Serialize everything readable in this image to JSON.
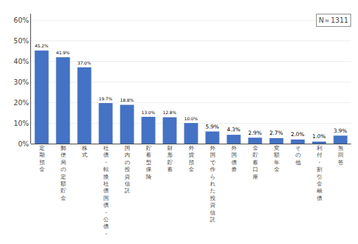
{
  "chart_data": {
    "type": "bar",
    "categories": [
      "定期預金",
      "郵便局の定額貯金",
      "株式",
      "社債・転換社債国債・公債・",
      "国内の投資信託",
      "貯蓄型保険",
      "財形貯蓄",
      "外貨預金",
      "外国で作られた投資信託",
      "外国債券",
      "金貯蓄口座",
      "変額年金",
      "その他",
      "利付・割引金融債",
      "無回答"
    ],
    "values": [
      45.2,
      41.9,
      37.0,
      19.7,
      18.8,
      13.0,
      12.8,
      10.0,
      5.9,
      4.3,
      2.9,
      2.7,
      2.0,
      1.0,
      3.9
    ],
    "value_labels": [
      "45.2%",
      "41.9%",
      "37.0%",
      "19.7%",
      "18.8%",
      "13.0%",
      "12.8%",
      "10.0%",
      "5.9%",
      "4.3%",
      "2.9%",
      "2.7%",
      "2.0%",
      "1.0%",
      "3.9%"
    ],
    "data_labels": true,
    "color": "#4472c4",
    "ylim": [
      0,
      63
    ],
    "yticks": [
      {
        "value": 0,
        "label": "0%"
      },
      {
        "value": 10,
        "label": "10%"
      },
      {
        "value": 20,
        "label": "20%"
      },
      {
        "value": 30,
        "label": "30%"
      },
      {
        "value": 40,
        "label": "40%"
      },
      {
        "value": 50,
        "label": "50%"
      },
      {
        "value": 60,
        "label": "60%"
      }
    ],
    "grid": true,
    "annotations": [
      "N＝1311"
    ]
  }
}
